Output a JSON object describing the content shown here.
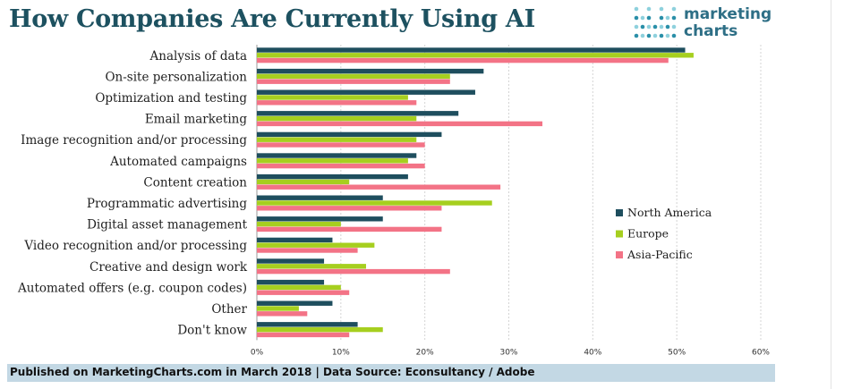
{
  "title": "How Companies Are Currently Using AI",
  "logo": {
    "line1": "marketing",
    "line2": "charts"
  },
  "footer": {
    "text": "Published on MarketingCharts.com in March 2018 | Data Source: Econsultancy / Adobe"
  },
  "colors": {
    "title": "#1d5160",
    "north_america": "#1e4e5e",
    "europe": "#a6cf1f",
    "asia_pacific": "#f37386",
    "grid": "#d4d4d4",
    "footer_bg": "#c3d8e4",
    "logo_dot_light": "#8ed1dd",
    "logo_dot_dark": "#2a8fa8"
  },
  "chart_data": {
    "type": "bar",
    "orientation": "horizontal",
    "categories": [
      "Analysis of data",
      "On-site personalization",
      "Optimization and testing",
      "Email marketing",
      "Image recognition and/or processing",
      "Automated campaigns",
      "Content creation",
      "Programmatic advertising",
      "Digital asset management",
      "Video recognition and/or processing",
      "Creative and design work",
      "Automated offers (e.g. coupon codes)",
      "Other",
      "Don't know"
    ],
    "series": [
      {
        "name": "North America",
        "color": "#1e4e5e",
        "values": [
          51,
          27,
          26,
          24,
          22,
          19,
          18,
          15,
          15,
          9,
          8,
          8,
          9,
          12
        ]
      },
      {
        "name": "Europe",
        "color": "#a6cf1f",
        "values": [
          52,
          23,
          18,
          19,
          19,
          18,
          11,
          28,
          10,
          14,
          13,
          10,
          5,
          15
        ]
      },
      {
        "name": "Asia-Pacific",
        "color": "#f37386",
        "values": [
          49,
          23,
          19,
          34,
          20,
          20,
          29,
          22,
          22,
          12,
          23,
          11,
          6,
          11
        ]
      }
    ],
    "xlim": [
      0,
      60
    ],
    "xticks": [
      "0%",
      "10%",
      "20%",
      "30%",
      "40%",
      "50%",
      "60%"
    ],
    "grid": true,
    "gridlines": "vertical-dashed",
    "legend_position": "right"
  }
}
